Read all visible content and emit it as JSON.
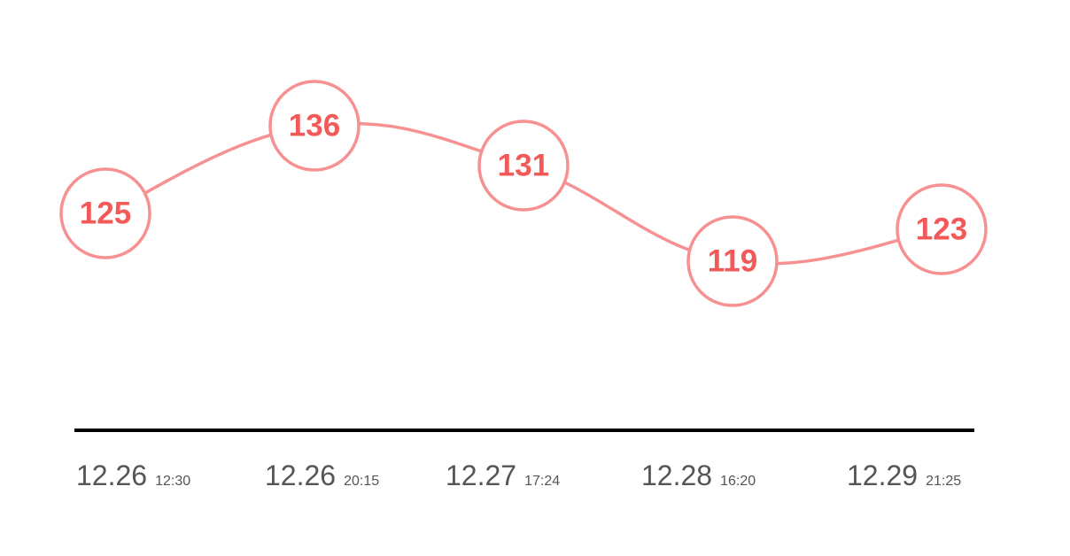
{
  "chart_data": {
    "type": "line",
    "x": [
      {
        "date": "12.26",
        "time": "12:30"
      },
      {
        "date": "12.26",
        "time": "20:15"
      },
      {
        "date": "12.27",
        "time": "17:24"
      },
      {
        "date": "12.28",
        "time": "16:20"
      },
      {
        "date": "12.29",
        "time": "21:25"
      }
    ],
    "series": [
      {
        "values": [
          125,
          136,
          131,
          119,
          123
        ]
      }
    ],
    "data_labels": [
      "125",
      "136",
      "131",
      "119",
      "123"
    ],
    "ylim": [
      108,
      144
    ],
    "grid": false,
    "curve": "smooth",
    "colors": {
      "line": "#f79191",
      "circle_border": "#f79191",
      "label": "#f25a5a",
      "axis": "#000000",
      "tick_text": "#555555"
    }
  }
}
